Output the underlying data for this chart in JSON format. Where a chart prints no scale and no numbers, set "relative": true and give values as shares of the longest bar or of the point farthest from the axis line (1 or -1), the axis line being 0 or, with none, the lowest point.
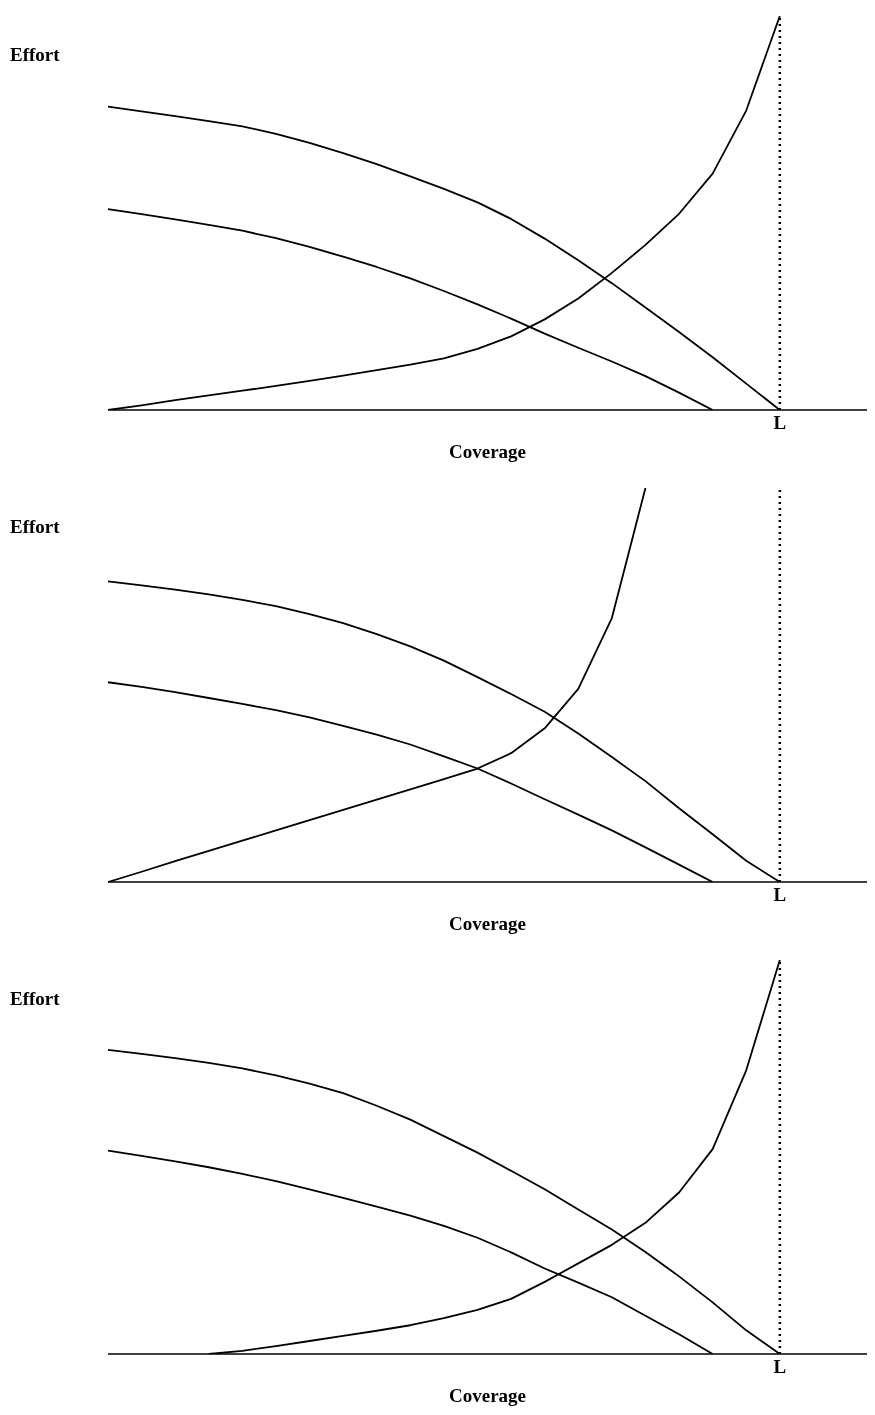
{
  "chart_data": [
    {
      "type": "line",
      "relative": true,
      "ylabel": "Effort",
      "xlabel": "Coverage",
      "grid": false,
      "legend": false,
      "marker": "none",
      "line_style": "solid",
      "categories": [
        null,
        null,
        null,
        null,
        null,
        null,
        null,
        null,
        null,
        null,
        null,
        null,
        null,
        null,
        null,
        null,
        null,
        null,
        null,
        null,
        null,
        null,
        null
      ],
      "annotations": [
        "L"
      ],
      "series": [
        {
          "color": "#000000",
          "values": [
            0.77,
            0.758,
            0.746,
            0.733,
            0.72,
            0.701,
            0.678,
            0.652,
            0.624,
            0.593,
            0.561,
            0.527,
            0.485,
            0.435,
            0.38,
            0.322,
            0.26,
            0.198,
            0.134,
            0.067,
            0,
            null,
            null
          ]
        },
        {
          "color": "#000000",
          "values": [
            0.51,
            0.497,
            0.484,
            0.47,
            0.455,
            0.436,
            0.414,
            0.389,
            0.363,
            0.334,
            0.302,
            0.268,
            0.232,
            0.194,
            0.158,
            0.123,
            0.086,
            0.044,
            0,
            null,
            null,
            null,
            null
          ]
        },
        {
          "color": "#000000",
          "values": [
            0,
            0.012,
            0.025,
            0.037,
            0.049,
            0.061,
            0.074,
            0.087,
            0.101,
            0.115,
            0.131,
            0.155,
            0.187,
            0.23,
            0.283,
            0.348,
            0.419,
            0.498,
            0.6,
            0.76,
            1,
            null,
            null
          ]
        }
      ]
    },
    {
      "type": "line",
      "relative": true,
      "ylabel": "Effort",
      "xlabel": "Coverage",
      "grid": false,
      "legend": false,
      "marker": "none",
      "line_style": "solid",
      "categories": [
        null,
        null,
        null,
        null,
        null,
        null,
        null,
        null,
        null,
        null,
        null,
        null,
        null,
        null,
        null,
        null,
        null,
        null,
        null,
        null,
        null,
        null,
        null
      ],
      "annotations": [
        "L"
      ],
      "series": [
        {
          "color": "#000000",
          "values": [
            0.763,
            0.753,
            0.742,
            0.73,
            0.716,
            0.7,
            0.68,
            0.657,
            0.629,
            0.598,
            0.562,
            0.52,
            0.477,
            0.432,
            0.377,
            0.317,
            0.256,
            0.187,
            0.121,
            0.054,
            0,
            null,
            null
          ]
        },
        {
          "color": "#000000",
          "values": [
            0.507,
            0.495,
            0.482,
            0.467,
            0.452,
            0.436,
            0.418,
            0.396,
            0.374,
            0.349,
            0.319,
            0.288,
            0.25,
            0.21,
            0.171,
            0.131,
            0.088,
            0.044,
            0,
            null,
            null,
            null,
            null
          ]
        },
        {
          "color": "#000000",
          "values": [
            0,
            0.026,
            0.053,
            0.079,
            0.105,
            0.131,
            0.157,
            0.183,
            0.209,
            0.235,
            0.261,
            0.288,
            0.327,
            0.39,
            0.49,
            0.67,
            1,
            null,
            null,
            null,
            null,
            null,
            null
          ]
        }
      ]
    },
    {
      "type": "line",
      "relative": true,
      "ylabel": "Effort",
      "xlabel": "Coverage",
      "grid": false,
      "legend": false,
      "marker": "none",
      "line_style": "solid",
      "categories": [
        null,
        null,
        null,
        null,
        null,
        null,
        null,
        null,
        null,
        null,
        null,
        null,
        null,
        null,
        null,
        null,
        null,
        null,
        null,
        null,
        null,
        null,
        null
      ],
      "annotations": [
        "L"
      ],
      "series": [
        {
          "color": "#000000",
          "values": [
            0.772,
            0.762,
            0.751,
            0.739,
            0.725,
            0.707,
            0.686,
            0.662,
            0.63,
            0.595,
            0.553,
            0.511,
            0.465,
            0.418,
            0.367,
            0.316,
            0.259,
            0.197,
            0.131,
            0.06,
            0,
            null,
            null
          ]
        },
        {
          "color": "#000000",
          "values": [
            0.516,
            0.503,
            0.489,
            0.474,
            0.457,
            0.439,
            0.418,
            0.396,
            0.374,
            0.351,
            0.325,
            0.295,
            0.258,
            0.217,
            0.181,
            0.144,
            0.097,
            0.05,
            0,
            null,
            null,
            null,
            null
          ]
        },
        {
          "color": "#000000",
          "values": [
            null,
            null,
            null,
            0,
            0.008,
            0.02,
            0.033,
            0.046,
            0.059,
            0.073,
            0.091,
            0.112,
            0.14,
            0.183,
            0.23,
            0.277,
            0.333,
            0.41,
            0.52,
            0.72,
            1,
            null,
            null
          ]
        }
      ]
    }
  ]
}
